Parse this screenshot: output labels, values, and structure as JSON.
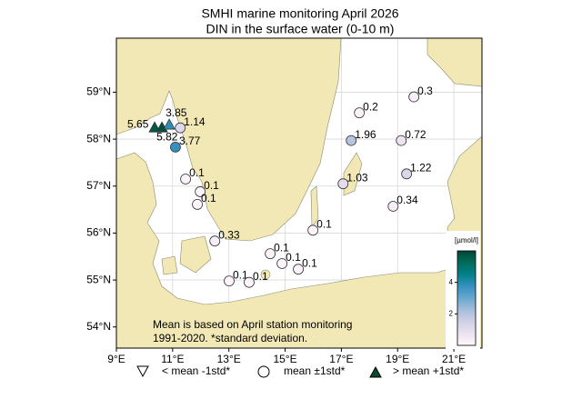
{
  "map": {
    "title": "SMHI marine monitoring April 2026",
    "subtitle": "DIN in the surface water (0-10 m)",
    "xlim": [
      9,
      22
    ],
    "ylim": [
      53.55,
      60.15
    ],
    "xticks": [
      {
        "value": 9,
        "label": "9°E"
      },
      {
        "value": 11,
        "label": "11°E"
      },
      {
        "value": 13,
        "label": "13°E"
      },
      {
        "value": 15,
        "label": "15°E"
      },
      {
        "value": 17,
        "label": "17°E"
      },
      {
        "value": 19,
        "label": "19°E"
      },
      {
        "value": 21,
        "label": "21°E"
      }
    ],
    "yticks": [
      {
        "value": 54,
        "label": "54°N"
      },
      {
        "value": 55,
        "label": "55°N"
      },
      {
        "value": 56,
        "label": "56°N"
      },
      {
        "value": 57,
        "label": "57°N"
      },
      {
        "value": 58,
        "label": "58°N"
      },
      {
        "value": 59,
        "label": "59°N"
      }
    ],
    "grid": true,
    "stations": [
      {
        "lon": 10.36,
        "lat": 58.25,
        "value": 5.65,
        "class": "above"
      },
      {
        "lon": 10.62,
        "lat": 58.25,
        "value": 5.82,
        "class": "above"
      },
      {
        "lon": 10.88,
        "lat": 58.31,
        "value": 3.85,
        "class": "above"
      },
      {
        "lon": 11.27,
        "lat": 58.24,
        "value": 1.14,
        "class": "within"
      },
      {
        "lon": 11.1,
        "lat": 57.83,
        "value": 3.77,
        "class": "within"
      },
      {
        "lon": 11.46,
        "lat": 57.15,
        "value": 0.1,
        "class": "within"
      },
      {
        "lon": 11.98,
        "lat": 56.88,
        "value": 0.1,
        "class": "within"
      },
      {
        "lon": 11.88,
        "lat": 56.61,
        "value": 0.1,
        "class": "within"
      },
      {
        "lon": 12.5,
        "lat": 55.83,
        "value": 0.33,
        "class": "within"
      },
      {
        "lon": 14.47,
        "lat": 55.56,
        "value": 0.1,
        "class": "within"
      },
      {
        "lon": 14.89,
        "lat": 55.35,
        "value": 0.1,
        "class": "within"
      },
      {
        "lon": 15.47,
        "lat": 55.23,
        "value": 0.1,
        "class": "within"
      },
      {
        "lon": 13.01,
        "lat": 54.98,
        "value": 0.1,
        "class": "within"
      },
      {
        "lon": 13.72,
        "lat": 54.95,
        "value": 0.1,
        "class": "within"
      },
      {
        "lon": 15.99,
        "lat": 56.06,
        "value": 0.1,
        "class": "within"
      },
      {
        "lon": 17.06,
        "lat": 57.05,
        "value": 1.03,
        "class": "within"
      },
      {
        "lon": 17.35,
        "lat": 57.97,
        "value": 1.96,
        "class": "within"
      },
      {
        "lon": 17.64,
        "lat": 58.56,
        "value": 0.2,
        "class": "within"
      },
      {
        "lon": 19.58,
        "lat": 58.9,
        "value": 0.3,
        "class": "within"
      },
      {
        "lon": 19.13,
        "lat": 57.97,
        "value": 0.72,
        "class": "within"
      },
      {
        "lon": 19.32,
        "lat": 57.26,
        "value": 1.22,
        "class": "within"
      },
      {
        "lon": 18.84,
        "lat": 56.57,
        "value": 0.34,
        "class": "within"
      }
    ],
    "colorbar": {
      "label": "[µmol/l]",
      "clim": [
        0,
        6
      ],
      "ticks": [
        2,
        4
      ],
      "colormap": [
        "#fff7fb",
        "#ece2f0",
        "#d0d1e6",
        "#a6bddb",
        "#67a9cf",
        "#3690c0",
        "#02818a",
        "#016c59",
        "#014636"
      ]
    },
    "note": [
      "Mean is based on April station monitoring",
      "1991-2020. *standard deviation."
    ],
    "legend": [
      "< mean -1std*",
      "mean ±1std*",
      "> mean +1std*"
    ]
  }
}
